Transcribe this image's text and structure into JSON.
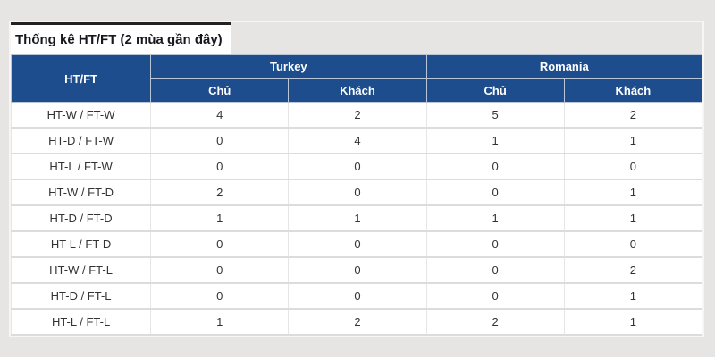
{
  "panel": {
    "title": "Thống kê HT/FT (2 mùa gần đây)"
  },
  "colors": {
    "page_background": "#e7e5e3",
    "header_blue": "#1d4d8c",
    "title_accent": "#232323",
    "body_text": "#333333"
  },
  "table": {
    "corner_label": "HT/FT",
    "groups": [
      {
        "label": "Turkey",
        "subcols": [
          "Chủ",
          "Khách"
        ]
      },
      {
        "label": "Romania",
        "subcols": [
          "Chủ",
          "Khách"
        ]
      }
    ],
    "rows": [
      {
        "label": "HT-W / FT-W",
        "values": [
          "4",
          "2",
          "5",
          "2"
        ]
      },
      {
        "label": "HT-D / FT-W",
        "values": [
          "0",
          "4",
          "1",
          "1"
        ]
      },
      {
        "label": "HT-L / FT-W",
        "values": [
          "0",
          "0",
          "0",
          "0"
        ]
      },
      {
        "label": "HT-W / FT-D",
        "values": [
          "2",
          "0",
          "0",
          "1"
        ]
      },
      {
        "label": "HT-D / FT-D",
        "values": [
          "1",
          "1",
          "1",
          "1"
        ]
      },
      {
        "label": "HT-L / FT-D",
        "values": [
          "0",
          "0",
          "0",
          "0"
        ]
      },
      {
        "label": "HT-W / FT-L",
        "values": [
          "0",
          "0",
          "0",
          "2"
        ]
      },
      {
        "label": "HT-D / FT-L",
        "values": [
          "0",
          "0",
          "0",
          "1"
        ]
      },
      {
        "label": "HT-L / FT-L",
        "values": [
          "1",
          "2",
          "2",
          "1"
        ]
      }
    ]
  }
}
